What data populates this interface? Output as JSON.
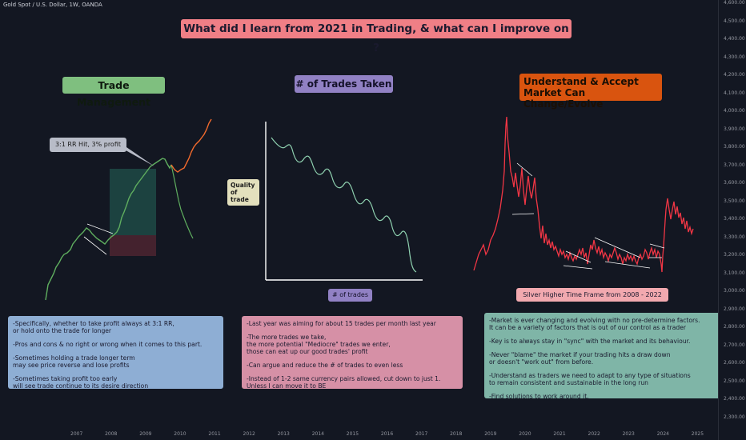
{
  "symbol": "Gold Spot / U.S. Dollar, 1W, OANDA",
  "title": "What did I learn from 2021 in Trading, & what can I improve on ?",
  "sections": {
    "trade_management": "Trade Management",
    "trades_taken": "# of Trades Taken",
    "market_line1": "Understand & Accept",
    "market_line2": "Market Can Change/Evolve"
  },
  "labels": {
    "rr_hit": "3:1 RR Hit, 3% profit",
    "quality": "Quality\nof\ntrade",
    "num_trades": "# of trades",
    "silver": "Silver Higher Time Frame from 2008 - 2022"
  },
  "notes": {
    "left": [
      "-Specifically, whether to take profit always at 3:1 RR,\nor hold onto the trade for longer",
      "-Pros and cons & no right or wrong when it comes to this part.",
      "-Sometimes holding a trade longer term\nmay see price reverse and lose profits",
      "-Sometimes taking profit too early\nwill see trade continue to its desire direction"
    ],
    "mid": [
      "-Last year was aiming for about 15 trades per month last year",
      "-The more trades we take,\nthe more potential \"Mediocre\" trades we enter,\nthose can eat up our good trades' profit",
      "-Can argue and reduce the # of trades to even less",
      "-Instead of 1-2 same currency pairs allowed, cut down to just 1.\nUnless I can move it to BE"
    ],
    "right": [
      "-Market is ever changing and evolving with no pre-determine factors.\nIt can be a variety of factors that is out of our control as a trader",
      "-Key is to always stay in \"sync\" with the market and its behaviour.",
      "-Never \"blame\" the market if your trading hits a draw down\nor doesn't \"work out\" from before.",
      "-Understand as traders we need to adapt to any type of situations\nto remain consistent and sustainable in the long run",
      "-Find solutions to work around it."
    ]
  },
  "y_axis": [
    "4,600.00",
    "4,500.00",
    "4,400.00",
    "4,300.00",
    "4,200.00",
    "4,100.00",
    "4,000.00",
    "3,900.00",
    "3,800.00",
    "3,700.00",
    "3,600.00",
    "3,500.00",
    "3,400.00",
    "3,300.00",
    "3,200.00",
    "3,100.00",
    "3,000.00",
    "2,900.00",
    "2,800.00",
    "2,700.00",
    "2,600.00",
    "2,500.00",
    "2,400.00",
    "2,300.00"
  ],
  "x_axis": [
    "2007",
    "2008",
    "2009",
    "2010",
    "2011",
    "2012",
    "2013",
    "2014",
    "2015",
    "2016",
    "2017",
    "2018",
    "2019",
    "2020",
    "2021",
    "2022",
    "2023",
    "2024",
    "2025"
  ],
  "colors": {
    "background": "#131722",
    "green_line": "#5fae5f",
    "red_line": "#f23645",
    "orange_line": "#f26a2d",
    "curve": "#8fd1b0"
  }
}
